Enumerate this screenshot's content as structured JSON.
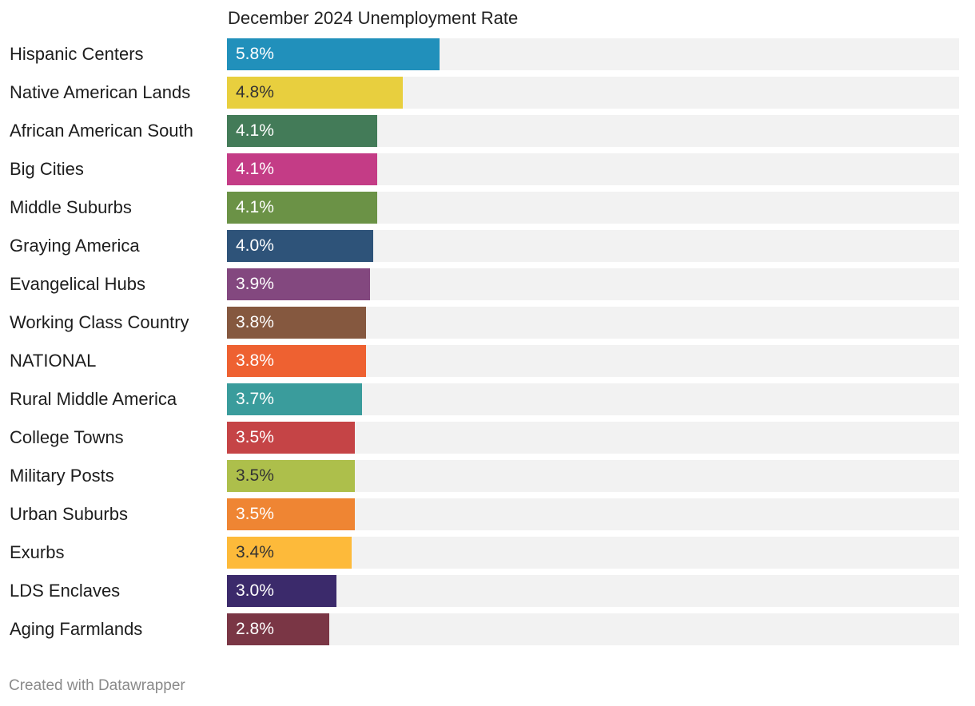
{
  "chart_data": {
    "type": "bar",
    "orientation": "horizontal",
    "title": "December 2024 Unemployment Rate",
    "xlim": [
      0,
      20
    ],
    "unit": "%",
    "categories": [
      "Hispanic Centers",
      "Native American Lands",
      "African American South",
      "Big Cities",
      "Middle Suburbs",
      "Graying America",
      "Evangelical Hubs",
      "Working Class Country",
      "NATIONAL",
      "Rural Middle America",
      "College Towns",
      "Military Posts",
      "Urban Suburbs",
      "Exurbs",
      "LDS Enclaves",
      "Aging Farmlands"
    ],
    "values": [
      5.8,
      4.8,
      4.1,
      4.1,
      4.1,
      4.0,
      3.9,
      3.8,
      3.8,
      3.7,
      3.5,
      3.5,
      3.5,
      3.4,
      3.0,
      2.8
    ],
    "value_labels": [
      "5.8%",
      "4.8%",
      "4.1%",
      "4.1%",
      "4.1%",
      "4.0%",
      "3.9%",
      "3.8%",
      "3.8%",
      "3.7%",
      "3.5%",
      "3.5%",
      "3.5%",
      "3.4%",
      "3.0%",
      "2.8%"
    ],
    "colors": [
      "#2190bb",
      "#e8cf3e",
      "#437b58",
      "#c43c86",
      "#6b9246",
      "#2e5379",
      "#83487f",
      "#85583f",
      "#ee6131",
      "#3a9c9c",
      "#c54446",
      "#adbf4b",
      "#ef8533",
      "#fdba3a",
      "#3b2a6b",
      "#7a3645"
    ],
    "label_colors": [
      "#ffffff",
      "#333333",
      "#ffffff",
      "#ffffff",
      "#ffffff",
      "#ffffff",
      "#ffffff",
      "#ffffff",
      "#ffffff",
      "#ffffff",
      "#ffffff",
      "#333333",
      "#ffffff",
      "#333333",
      "#ffffff",
      "#ffffff"
    ],
    "track_color": "#f2f2f2"
  },
  "footer": {
    "credit": "Created with Datawrapper"
  }
}
